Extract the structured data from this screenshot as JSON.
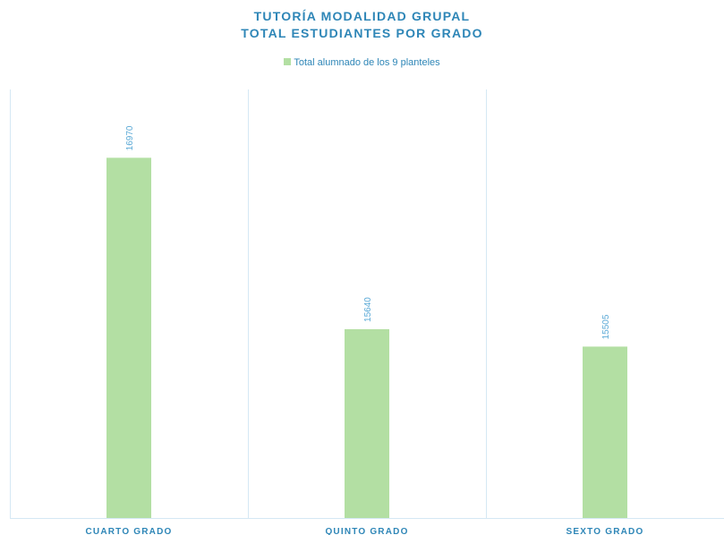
{
  "chart_data": {
    "type": "bar",
    "title": "TUTORÍA MODALIDAD GRUPAL",
    "subtitle": "TOTAL ESTUDIANTES POR GRADO",
    "categories": [
      "CUARTO GRADO",
      "QUINTO GRADO",
      "SEXTO GRADO"
    ],
    "series": [
      {
        "name": "Total alumnado de los 9 planteles",
        "values": [
          16970,
          15640,
          15505
        ],
        "color": "#b3dfa3"
      }
    ],
    "ylim": [
      14175,
      17500
    ],
    "grid": "vertical-category-separators",
    "legend": "top-center",
    "data_label_color": "#5aa9d6",
    "text_color": "#2e86b7",
    "gridline_color": "#d5e8f4"
  }
}
